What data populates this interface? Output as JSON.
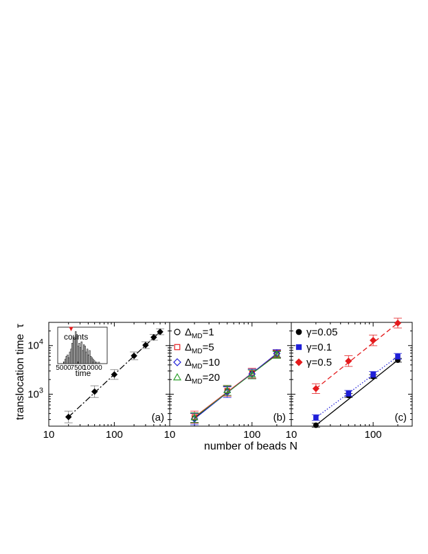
{
  "figure": {
    "ylabel_text": "translocation time",
    "ylabel_symbol": "τ",
    "xlabel": "number of beads N"
  },
  "chart_data": [
    {
      "type": "scatter",
      "panel_label": "(a)",
      "xscale": "log",
      "yscale": "log",
      "xlim": [
        10,
        700
      ],
      "ylim": [
        220,
        30000
      ],
      "xticks": [
        {
          "v": 10,
          "label": "10"
        },
        {
          "v": 100,
          "label": "100"
        }
      ],
      "yticks": [
        {
          "v": 1000,
          "base": "10",
          "exp": "3"
        },
        {
          "v": 10000,
          "base": "10",
          "exp": "4"
        }
      ],
      "series": [
        {
          "color": "#000000",
          "marker": "diamond-filled",
          "line": "dashdot",
          "x": [
            20,
            50,
            100,
            200,
            300,
            400,
            500
          ],
          "y": [
            340,
            1130,
            2540,
            6150,
            10200,
            14800,
            19200
          ],
          "err": [
            0.12,
            0.12,
            0.1,
            0.08,
            0.07,
            0.06,
            0.06
          ]
        }
      ],
      "fit": {
        "series": 0,
        "x": [
          20,
          500
        ],
        "y": [
          340,
          19200
        ]
      },
      "inset": {
        "xlabel": "time",
        "ylabel": "counts",
        "xlim": [
          4000,
          12500
        ],
        "xticks": [
          {
            "v": 5000,
            "label": "5000"
          },
          {
            "v": 7500,
            "label": "7500"
          },
          {
            "v": 10000,
            "label": "10000"
          }
        ],
        "bins_start": 5000,
        "bin_width": 200,
        "counts": [
          1,
          3,
          5,
          6,
          4,
          8,
          10,
          14,
          17,
          18,
          22,
          20,
          12,
          14,
          11,
          15,
          9,
          13,
          12,
          8,
          10,
          6,
          9,
          5,
          4,
          3,
          2,
          1,
          1,
          0,
          1
        ],
        "count_max": 25,
        "marker_x": 6300
      }
    },
    {
      "type": "scatter",
      "panel_label": "(b)",
      "xscale": "log",
      "yscale": "log",
      "xlim": [
        10,
        300
      ],
      "ylim": [
        220,
        30000
      ],
      "xticks": [
        {
          "v": 10,
          "label": "10"
        },
        {
          "v": 100,
          "label": "100"
        }
      ],
      "series": [
        {
          "name_base": "Δ",
          "name_sub": "MD",
          "name_val": "=1",
          "color": "#000000",
          "marker": "circle-open",
          "x": [
            20,
            50,
            100,
            200
          ],
          "y": [
            320,
            1150,
            2650,
            6600
          ],
          "err": [
            0.1,
            0.1,
            0.09,
            0.07
          ]
        },
        {
          "name_base": "Δ",
          "name_sub": "MD",
          "name_val": "=5",
          "color": "#e41a1c",
          "marker": "square-open",
          "x": [
            20,
            50,
            100,
            200
          ],
          "y": [
            340,
            1180,
            2700,
            6700
          ],
          "err": [
            0.12,
            0.11,
            0.1,
            0.08
          ]
        },
        {
          "name_base": "Δ",
          "name_sub": "MD",
          "name_val": "=10",
          "color": "#1f1fd8",
          "marker": "diamond-open",
          "x": [
            20,
            50,
            100,
            200
          ],
          "y": [
            310,
            1100,
            2600,
            6900
          ],
          "err": [
            0.12,
            0.11,
            0.1,
            0.08
          ]
        },
        {
          "name_base": "Δ",
          "name_sub": "MD",
          "name_val": "=20",
          "color": "#2ca02c",
          "marker": "triangle-open",
          "x": [
            20,
            50,
            100,
            200
          ],
          "y": [
            330,
            1200,
            2550,
            6400
          ],
          "err": [
            0.1,
            0.1,
            0.09,
            0.07
          ]
        }
      ],
      "legend_position": "top-left"
    },
    {
      "type": "scatter",
      "panel_label": "(c)",
      "xscale": "log",
      "yscale": "log",
      "xlim": [
        10,
        300
      ],
      "ylim": [
        220,
        30000
      ],
      "xticks": [
        {
          "v": 10,
          "label": "10"
        },
        {
          "v": 100,
          "label": "100"
        }
      ],
      "series": [
        {
          "name_base": "γ",
          "name_val": "=0.05",
          "color": "#000000",
          "marker": "circle-filled",
          "line": "solid",
          "x": [
            20,
            50,
            100,
            200
          ],
          "y": [
            230,
            940,
            2300,
            5000
          ],
          "err": [
            0.04,
            0.04,
            0.04,
            0.04
          ]
        },
        {
          "name_base": "γ",
          "name_val": "=0.1",
          "color": "#1f1fd8",
          "marker": "square-filled",
          "line": "dotted",
          "x": [
            20,
            50,
            100,
            200
          ],
          "y": [
            330,
            1040,
            2550,
            6000
          ],
          "err": [
            0.06,
            0.06,
            0.06,
            0.06
          ]
        },
        {
          "name_base": "γ",
          "name_val": "=0.5",
          "color": "#e41a1c",
          "marker": "diamond-filled",
          "line": "dashed",
          "x": [
            20,
            50,
            100,
            200
          ],
          "y": [
            1300,
            4800,
            12800,
            29000
          ],
          "err": [
            0.1,
            0.11,
            0.11,
            0.1
          ]
        }
      ],
      "legend_position": "top-left"
    }
  ]
}
